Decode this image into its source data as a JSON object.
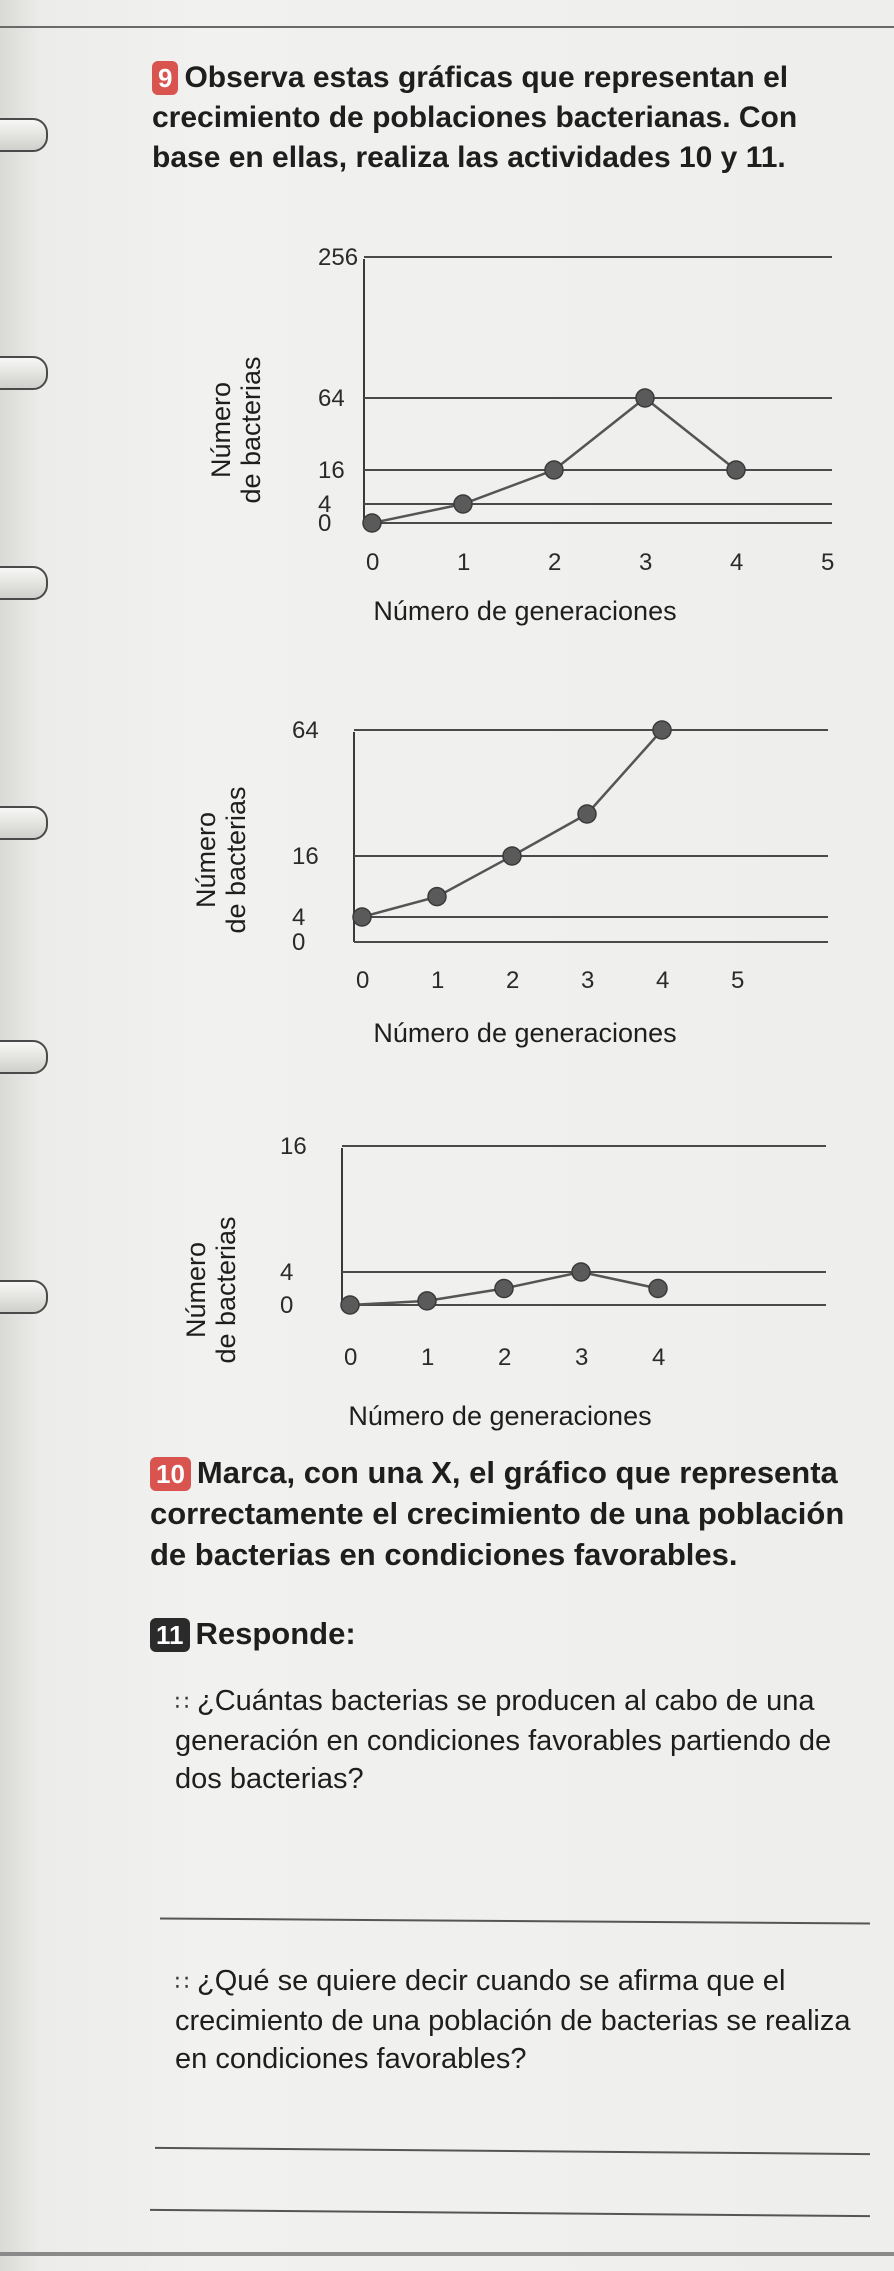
{
  "q9": {
    "number": "9",
    "text": "Observa estas gráficas que representan el crecimiento de poblaciones bacterianas. Con base en ellas, realiza las actividades 10 y 11."
  },
  "chart_data": [
    {
      "type": "line",
      "xlabel": "Número de generaciones",
      "ylabel": "Número de bacterias",
      "x": [
        0,
        1,
        2,
        3,
        4,
        5
      ],
      "y_ticks": [
        "0",
        "4",
        "16",
        "64",
        "256"
      ],
      "values": [
        0,
        4,
        16,
        64,
        16,
        null
      ]
    },
    {
      "type": "line",
      "xlabel": "Número de generaciones",
      "ylabel": "Número de bacterias",
      "x": [
        0,
        1,
        2,
        3,
        4,
        5
      ],
      "y_ticks": [
        "0",
        "4",
        "16",
        "64"
      ],
      "values": [
        4,
        8,
        16,
        32,
        64,
        null
      ]
    },
    {
      "type": "line",
      "xlabel": "Número de generaciones",
      "ylabel": "Número de bacterias",
      "x": [
        0,
        1,
        2,
        3,
        4
      ],
      "y_ticks": [
        "0",
        "4",
        "16"
      ],
      "values": [
        0,
        0.5,
        2,
        4,
        2
      ]
    }
  ],
  "q10": {
    "number": "10",
    "text": "Marca, con una X, el gráfico que representa correctamente el crecimiento de una población de bacterias en condiciones favorables."
  },
  "q11": {
    "number": "11",
    "title": "Responde:",
    "questions": [
      "¿Cuántas bacterias se producen al cabo de una generación en condiciones favorables partiendo de dos bacterias?",
      "¿Qué se quiere decir cuando se afirma que el crecimiento de una población de bacterias se realiza en condiciones favorables?"
    ]
  }
}
